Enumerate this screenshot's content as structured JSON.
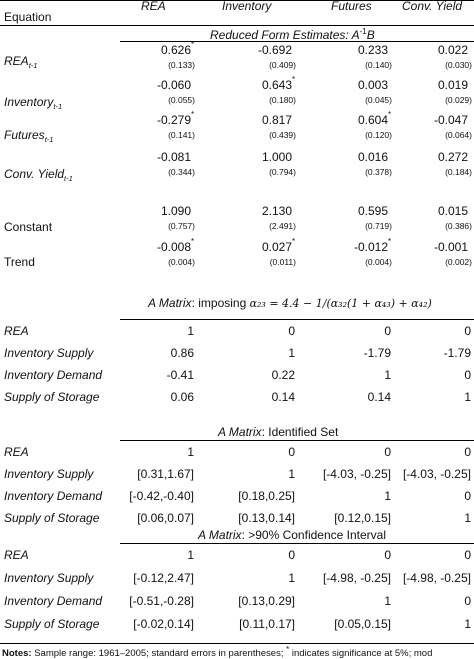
{
  "header": {
    "equation": "Equation",
    "columns": [
      "REA",
      "Inventory",
      "Futures",
      "Conv. Yield"
    ]
  },
  "panel1": {
    "title_prefix": "Reduced Form Estimates: A",
    "title_sup": "-1",
    "title_suffix": "B",
    "rows": [
      {
        "label": "REA",
        "sub": "t-1",
        "coefs": [
          "0.626",
          "-0.692",
          "0.233",
          "0.022"
        ],
        "stars": [
          "*",
          "",
          "",
          ""
        ],
        "ses": [
          "(0.133)",
          "(0.409)",
          "(0.140)",
          "(0.030)"
        ]
      },
      {
        "label": "Inventory",
        "sub": "t-1",
        "coefs": [
          "-0.060",
          "0.643",
          "0.003",
          "0.019"
        ],
        "stars": [
          "",
          "*",
          "",
          ""
        ],
        "ses": [
          "(0.055)",
          "(0.180)",
          "(0.045)",
          "(0.029)"
        ]
      },
      {
        "label": "Futures",
        "sub": "t-1",
        "coefs": [
          "-0.279",
          "0.817",
          "0.604",
          "-0.047"
        ],
        "stars": [
          "*",
          "",
          "*",
          ""
        ],
        "ses": [
          "(0.141)",
          "(0.439)",
          "(0.120)",
          "(0.064)"
        ]
      },
      {
        "label": "Conv. Yield",
        "sub": "t-1",
        "coefs": [
          "-0.081",
          "1.000",
          "0.016",
          "0.272"
        ],
        "stars": [
          "",
          "",
          "",
          ""
        ],
        "ses": [
          "(0.344)",
          "(0.794)",
          "(0.378)",
          "(0.184)"
        ]
      },
      {
        "label": "Constant",
        "sub": "",
        "coefs": [
          "1.090",
          "2.130",
          "0.595",
          "0.015"
        ],
        "stars": [
          "",
          "",
          "",
          ""
        ],
        "ses": [
          "(0.757)",
          "(2.491)",
          "(0.719)",
          "(0.386)"
        ]
      },
      {
        "label": "Trend",
        "sub": "",
        "coefs": [
          "-0.008",
          "0.027",
          "-0.012",
          "-0.001"
        ],
        "stars": [
          "*",
          "*",
          "*",
          ""
        ],
        "ses": [
          "(0.004)",
          "(0.011)",
          "(0.004)",
          "(0.002)"
        ]
      }
    ]
  },
  "panel2": {
    "title_a": "A Matrix",
    "title_b": ": imposing ",
    "formula": "α₂₃ = 4.4 − 1/(α₃₂(1 + α₄₃) + α₄₂)",
    "rows": [
      {
        "label": "REA",
        "vals": [
          "1",
          "0",
          "0",
          "0"
        ]
      },
      {
        "label": "Inventory Supply",
        "vals": [
          "0.86",
          "1",
          "-1.79",
          "-1.79"
        ]
      },
      {
        "label": "Inventory Demand",
        "vals": [
          "-0.41",
          "0.22",
          "1",
          "0"
        ]
      },
      {
        "label": "Supply of Storage",
        "vals": [
          "0.06",
          "0.14",
          "0.14",
          "1"
        ]
      }
    ]
  },
  "panel3": {
    "title_a": "A Matrix",
    "title_b": ": Identified Set",
    "rows": [
      {
        "label": "REA",
        "vals": [
          "1",
          "0",
          "0",
          "0"
        ]
      },
      {
        "label": "Inventory Supply",
        "vals": [
          "[0.31,1.67]",
          "1",
          "[-4.03, -0.25]",
          "[-4.03, -0.25]"
        ]
      },
      {
        "label": "Inventory Demand",
        "vals": [
          "[-0.42,-0.40]",
          "[0.18,0.25]",
          "1",
          "0"
        ]
      },
      {
        "label": "Supply of Storage",
        "vals": [
          "[0.06,0.07]",
          "[0.13,0.14]",
          "[0.12,0.15]",
          "1"
        ]
      }
    ]
  },
  "panel4": {
    "title_a": "A Matrix",
    "title_b": ": >90% Confidence Interval",
    "rows": [
      {
        "label": "REA",
        "vals": [
          "1",
          "0",
          "0",
          "0"
        ]
      },
      {
        "label": "Inventory Supply",
        "vals": [
          "[-0.12,2.47]",
          "1",
          "[-4.98, -0.25]",
          "[-4.98, -0.25]"
        ]
      },
      {
        "label": "Inventory Demand",
        "vals": [
          "[-0.51,-0.28]",
          "[0.13,0.29]",
          "1",
          "0"
        ]
      },
      {
        "label": "Supply of Storage",
        "vals": [
          "[-0.02,0.14]",
          "[0.11,0.17]",
          "[0.05,0.15]",
          "1"
        ]
      }
    ]
  },
  "notes": {
    "bold": "Notes:",
    "text_a": " Sample range: 1961–2005; standard errors in parentheses; ",
    "star": "*",
    "text_b": " indicates significance at 5%; mod"
  }
}
